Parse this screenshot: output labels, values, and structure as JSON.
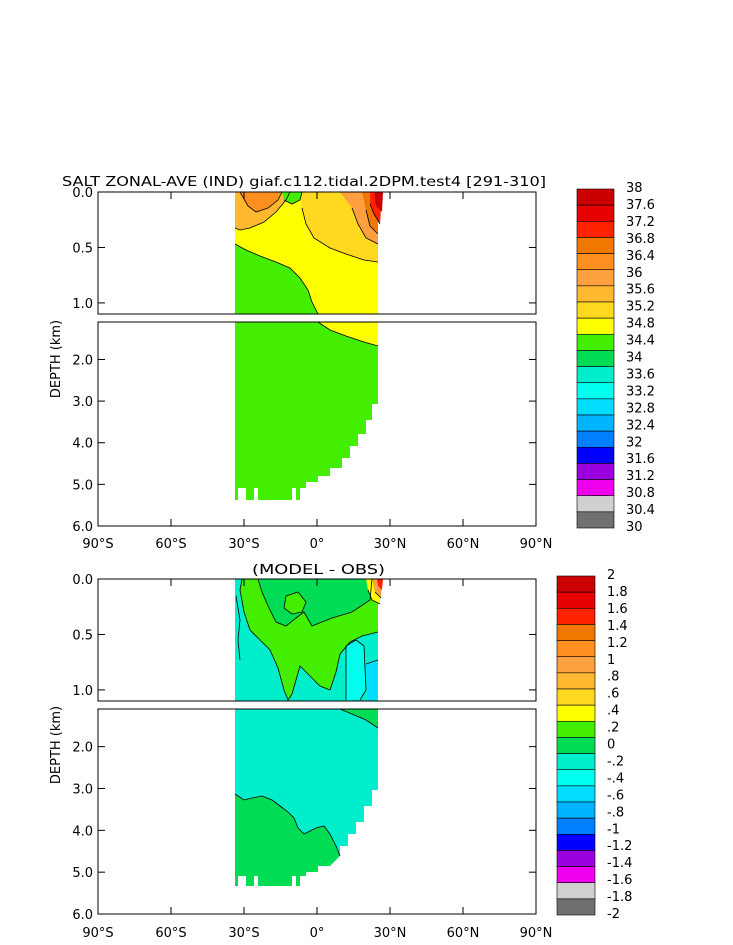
{
  "chart_data": [
    {
      "type": "heatmap",
      "title": "SALT ZONAL-AVE (IND) giaf.c112.tidal.2DPM.test4 [291-310]",
      "xlabel": "",
      "ylabel": "DEPTH (km)",
      "x_ticks": [
        "90°S",
        "60°S",
        "30°S",
        "0°",
        "30°N",
        "60°N",
        "90°N"
      ],
      "y_ticks_upper": [
        "0.0",
        "0.5",
        "1.0"
      ],
      "y_ticks_lower": [
        "2.0",
        "3.0",
        "4.0",
        "5.0",
        "6.0"
      ],
      "xlim": [
        -90,
        90
      ],
      "ylim_km": [
        6.0,
        0.0
      ],
      "depth_split_km": 1.1,
      "domain": {
        "lat_min": -34,
        "lat_max": 25
      },
      "legend_levels": [
        "38",
        "37.6",
        "37.2",
        "36.8",
        "36.4",
        "36",
        "35.6",
        "35.2",
        "34.8",
        "34.4",
        "34",
        "33.6",
        "33.2",
        "32.8",
        "32.4",
        "32",
        "31.6",
        "31.2",
        "30.8",
        "30.4",
        "30"
      ],
      "legend_colors": [
        "#cc0000",
        "#e60000",
        "#ff2200",
        "#f07800",
        "#ff9020",
        "#ffa040",
        "#ffb830",
        "#ffd820",
        "#ffff00",
        "#44ee00",
        "#00dd55",
        "#00eecc",
        "#00ffee",
        "#00ddff",
        "#00b4ff",
        "#0080ff",
        "#0000ff",
        "#9900dd",
        "#ee00ee",
        "#d0d0d0",
        "#707070"
      ]
    },
    {
      "type": "heatmap",
      "title": "(MODEL - OBS)",
      "xlabel": "",
      "ylabel": "DEPTH (km)",
      "x_ticks": [
        "90°S",
        "60°S",
        "30°S",
        "0°",
        "30°N",
        "60°N",
        "90°N"
      ],
      "y_ticks_upper": [
        "0.0",
        "0.5",
        "1.0"
      ],
      "y_ticks_lower": [
        "2.0",
        "3.0",
        "4.0",
        "5.0",
        "6.0"
      ],
      "xlim": [
        -90,
        90
      ],
      "ylim_km": [
        6.0,
        0.0
      ],
      "depth_split_km": 1.1,
      "domain": {
        "lat_min": -34,
        "lat_max": 25
      },
      "legend_levels": [
        "2",
        "1.8",
        "1.6",
        "1.4",
        "1.2",
        "1",
        ".8",
        ".6",
        ".4",
        ".2",
        "0",
        "-.2",
        "-.4",
        "-.6",
        "-.8",
        "-1",
        "-1.2",
        "-1.4",
        "-1.6",
        "-1.8",
        "-2"
      ],
      "legend_colors": [
        "#cc0000",
        "#e60000",
        "#ff2200",
        "#f07800",
        "#ff9020",
        "#ffa040",
        "#ffb830",
        "#ffd820",
        "#ffff00",
        "#44ee00",
        "#00dd55",
        "#00eecc",
        "#00ffee",
        "#00ddff",
        "#00b4ff",
        "#0080ff",
        "#0000ff",
        "#9900dd",
        "#ee00ee",
        "#d0d0d0",
        "#707070"
      ]
    }
  ]
}
